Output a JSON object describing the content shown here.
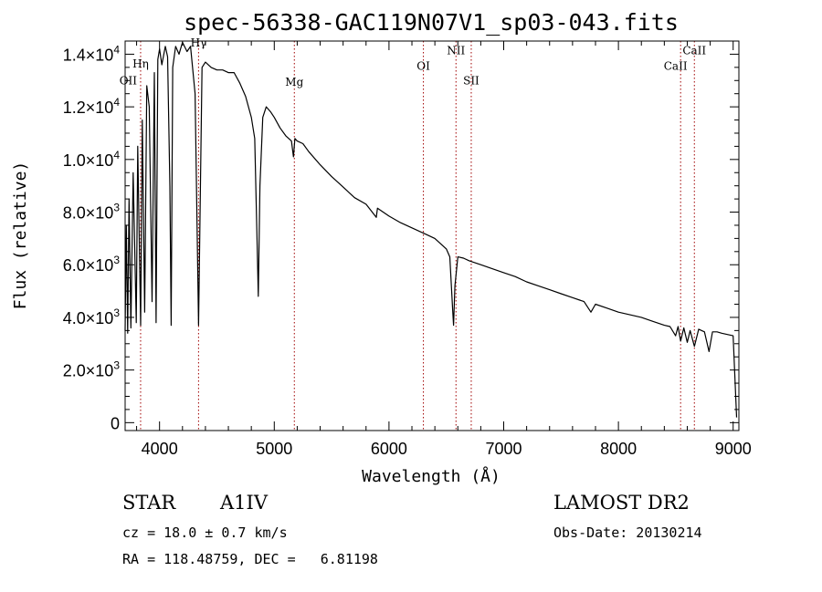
{
  "chart_data": {
    "type": "line",
    "title": "spec-56338-GAC119N07V1_sp03-043.fits",
    "xlabel": "Wavelength (Å)",
    "ylabel": "Flux (relative)",
    "xlim": [
      3700,
      9050
    ],
    "ylim": [
      -300,
      14500
    ],
    "grid": false,
    "x_ticks": [
      {
        "value": 4000,
        "label": "4000"
      },
      {
        "value": 5000,
        "label": "5000"
      },
      {
        "value": 6000,
        "label": "6000"
      },
      {
        "value": 7000,
        "label": "7000"
      },
      {
        "value": 8000,
        "label": "8000"
      },
      {
        "value": 9000,
        "label": "9000"
      }
    ],
    "y_ticks": [
      {
        "value": 0,
        "mant": "0",
        "exp": ""
      },
      {
        "value": 2000,
        "mant": "2.0×10",
        "exp": "3"
      },
      {
        "value": 4000,
        "mant": "4.0×10",
        "exp": "3"
      },
      {
        "value": 6000,
        "mant": "6.0×10",
        "exp": "3"
      },
      {
        "value": 8000,
        "mant": "8.0×10",
        "exp": "3"
      },
      {
        "value": 10000,
        "mant": "1.0×10",
        "exp": "4"
      },
      {
        "value": 12000,
        "mant": "1.2×10",
        "exp": "4"
      },
      {
        "value": 14000,
        "mant": "1.4×10",
        "exp": "4"
      }
    ],
    "series": [
      {
        "x": [
          3700,
          3710,
          3722,
          3734,
          3750,
          3770,
          3797,
          3810,
          3835,
          3850,
          3870,
          3889,
          3910,
          3935,
          3955,
          3970,
          3985,
          4000,
          4020,
          4050,
          4070,
          4090,
          4101,
          4115,
          4140,
          4170,
          4200,
          4240,
          4270,
          4310,
          4340,
          4370,
          4400,
          4450,
          4500,
          4550,
          4600,
          4650,
          4700,
          4750,
          4800,
          4830,
          4850,
          4861,
          4875,
          4900,
          4930,
          4970,
          5000,
          5050,
          5100,
          5150,
          5167,
          5180,
          5200,
          5250,
          5300,
          5400,
          5500,
          5600,
          5700,
          5800,
          5889,
          5900,
          6000,
          6100,
          6200,
          6300,
          6400,
          6450,
          6500,
          6530,
          6555,
          6563,
          6575,
          6600,
          6650,
          6700,
          6800,
          6900,
          7000,
          7100,
          7200,
          7300,
          7400,
          7500,
          7600,
          7700,
          7760,
          7800,
          7900,
          8000,
          8100,
          8200,
          8300,
          8400,
          8450,
          8498,
          8520,
          8542,
          8570,
          8600,
          8625,
          8662,
          8700,
          8750,
          8790,
          8820,
          8860,
          8900,
          8950,
          9000,
          9030
        ],
        "values": [
          3500,
          7500,
          3400,
          8500,
          3600,
          9500,
          3800,
          10500,
          3700,
          11500,
          4200,
          12800,
          12000,
          4600,
          13300,
          3800,
          13800,
          14200,
          13600,
          14300,
          13900,
          9000,
          3700,
          13500,
          14300,
          14000,
          14450,
          14100,
          14300,
          12500,
          3700,
          13500,
          13700,
          13500,
          13400,
          13400,
          13300,
          13300,
          12900,
          12400,
          11600,
          10800,
          7000,
          4800,
          9000,
          11600,
          12000,
          11800,
          11600,
          11200,
          10900,
          10700,
          10100,
          10800,
          10700,
          10600,
          10300,
          9800,
          9350,
          8950,
          8550,
          8300,
          7800,
          8150,
          7850,
          7600,
          7400,
          7200,
          7000,
          6800,
          6600,
          6300,
          4300,
          3700,
          5200,
          6300,
          6250,
          6150,
          6000,
          5850,
          5700,
          5550,
          5350,
          5200,
          5050,
          4900,
          4750,
          4600,
          4200,
          4500,
          4350,
          4200,
          4100,
          4000,
          3850,
          3700,
          3650,
          3300,
          3650,
          3100,
          3600,
          3050,
          3500,
          2900,
          3550,
          3450,
          2700,
          3450,
          3450,
          3400,
          3350,
          3300,
          200
        ]
      }
    ],
    "annotations": [
      {
        "label": "OII",
        "x": 3727,
        "y": 12850
      },
      {
        "label": "Hη",
        "x": 3835,
        "y": 13500
      },
      {
        "label": "Hγ",
        "x": 4340,
        "y": 14300
      },
      {
        "label": "Mg",
        "x": 5175,
        "y": 12800
      },
      {
        "label": "OI",
        "x": 6300,
        "y": 13400
      },
      {
        "label": "NII",
        "x": 6584,
        "y": 14000
      },
      {
        "label": "SII",
        "x": 6717,
        "y": 12850
      },
      {
        "label": "CaII",
        "x": 8498,
        "y": 13400
      },
      {
        "label": "CaII",
        "x": 8662,
        "y": 14000
      }
    ],
    "reference_lines": [
      3835,
      4340,
      5175,
      6300,
      6584,
      6717,
      8542,
      8662
    ]
  },
  "info": {
    "class": "STAR",
    "subclass": "A1IV",
    "survey": "LAMOST DR2",
    "redshift": "cz = 18.0 ± 0.7 km/s",
    "obsdate": "Obs-Date: 20130214",
    "coords": "RA = 118.48759, DEC =   6.81198"
  },
  "colors": {
    "spectrum": "#000000",
    "reference_line": "#a00000",
    "axes": "#000000"
  }
}
